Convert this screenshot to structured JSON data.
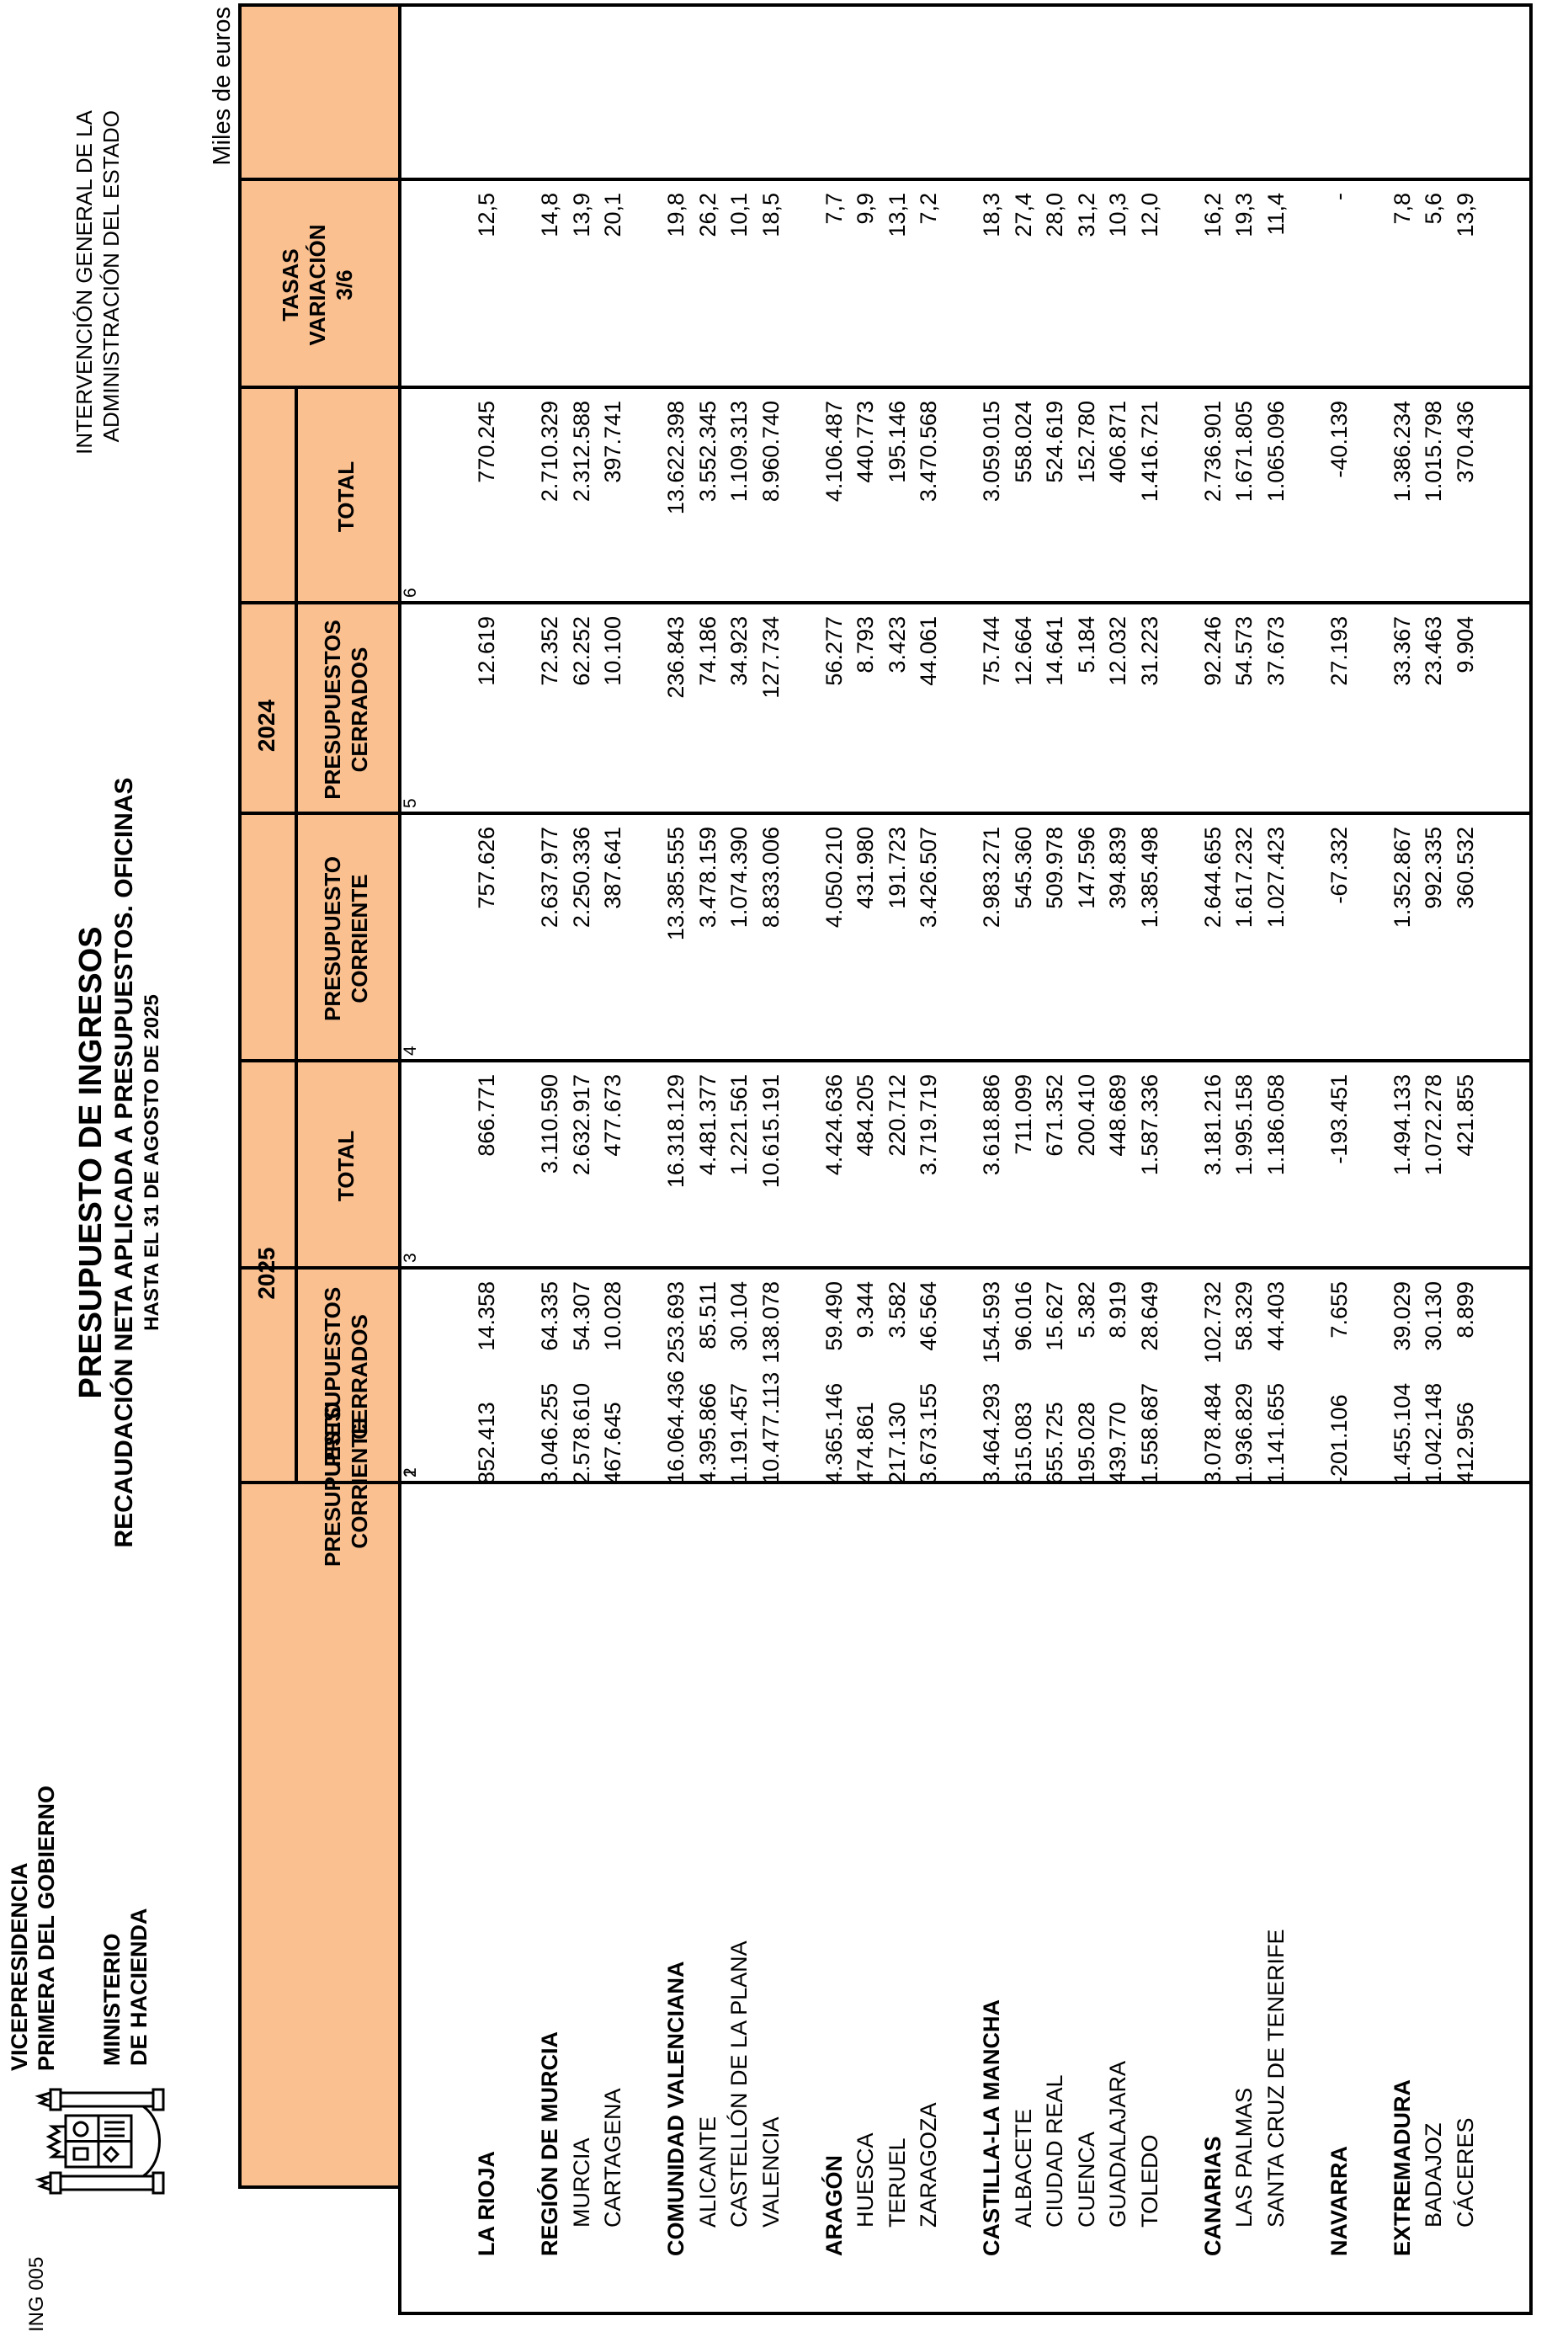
{
  "units_note": "Miles de euros",
  "letterhead": {
    "dept_line1": "VICEPRESIDENCIA",
    "dept_line2": "PRIMERA DEL GOBIERNO",
    "ministry_line1": "MINISTERIO",
    "ministry_line2": "DE HACIENDA",
    "form_code": "ING 005"
  },
  "agency": {
    "line1": "INTERVENCIÓN GENERAL DE LA",
    "line2": "ADMINISTRACIÓN DEL ESTADO"
  },
  "title": {
    "line1": "PRESUPUESTO DE INGRESOS",
    "line2": "RECAUDACIÓN NETA APLICADA A PRESUPUESTOS. OFICINAS",
    "line3": "HASTA EL 31 DE AGOSTO DE 2025"
  },
  "colors": {
    "header_fill": "#FAC090",
    "border": "#000000"
  },
  "table": {
    "year_groups": [
      {
        "label": "2025"
      },
      {
        "label": "2024"
      }
    ],
    "columns": [
      {
        "num": "1",
        "lines": [
          "PRESUPUESTO",
          "CORRIENTE"
        ]
      },
      {
        "num": "2",
        "lines": [
          "PRESUPUESTOS",
          "CERRADOS"
        ]
      },
      {
        "num": "3",
        "lines": [
          "TOTAL"
        ]
      },
      {
        "num": "4",
        "lines": [
          "PRESUPUESTO",
          "CORRIENTE"
        ]
      },
      {
        "num": "5",
        "lines": [
          "PRESUPUESTOS",
          "CERRADOS"
        ]
      },
      {
        "num": "6",
        "lines": [
          "TOTAL"
        ]
      },
      {
        "num": "",
        "lines": [
          "TASAS",
          "VARIACIÓN",
          "3/6"
        ]
      }
    ],
    "rows": [
      {
        "name": "LA RIOJA",
        "level": "group",
        "c1": "852.413",
        "c2": "14.358",
        "c3": "866.771",
        "c4": "757.626",
        "c5": "12.619",
        "c6": "770.245",
        "t": "12,5"
      },
      {
        "blank": true
      },
      {
        "name": "REGIÓN DE MURCIA",
        "level": "group",
        "c1": "3.046.255",
        "c2": "64.335",
        "c3": "3.110.590",
        "c4": "2.637.977",
        "c5": "72.352",
        "c6": "2.710.329",
        "t": "14,8"
      },
      {
        "name": "MURCIA",
        "level": "sub",
        "c1": "2.578.610",
        "c2": "54.307",
        "c3": "2.632.917",
        "c4": "2.250.336",
        "c5": "62.252",
        "c6": "2.312.588",
        "t": "13,9"
      },
      {
        "name": "CARTAGENA",
        "level": "sub",
        "c1": "467.645",
        "c2": "10.028",
        "c3": "477.673",
        "c4": "387.641",
        "c5": "10.100",
        "c6": "397.741",
        "t": "20,1"
      },
      {
        "blank": true
      },
      {
        "name": "COMUNIDAD VALENCIANA",
        "level": "group",
        "c1": "16.064.436",
        "c2": "253.693",
        "c3": "16.318.129",
        "c4": "13.385.555",
        "c5": "236.843",
        "c6": "13.622.398",
        "t": "19,8"
      },
      {
        "name": "ALICANTE",
        "level": "sub",
        "c1": "4.395.866",
        "c2": "85.511",
        "c3": "4.481.377",
        "c4": "3.478.159",
        "c5": "74.186",
        "c6": "3.552.345",
        "t": "26,2"
      },
      {
        "name": "CASTELLÓN DE LA PLANA",
        "level": "sub",
        "c1": "1.191.457",
        "c2": "30.104",
        "c3": "1.221.561",
        "c4": "1.074.390",
        "c5": "34.923",
        "c6": "1.109.313",
        "t": "10,1"
      },
      {
        "name": "VALENCIA",
        "level": "sub",
        "c1": "10.477.113",
        "c2": "138.078",
        "c3": "10.615.191",
        "c4": "8.833.006",
        "c5": "127.734",
        "c6": "8.960.740",
        "t": "18,5"
      },
      {
        "blank": true
      },
      {
        "name": "ARAGÓN",
        "level": "group",
        "c1": "4.365.146",
        "c2": "59.490",
        "c3": "4.424.636",
        "c4": "4.050.210",
        "c5": "56.277",
        "c6": "4.106.487",
        "t": "7,7"
      },
      {
        "name": "HUESCA",
        "level": "sub",
        "c1": "474.861",
        "c2": "9.344",
        "c3": "484.205",
        "c4": "431.980",
        "c5": "8.793",
        "c6": "440.773",
        "t": "9,9"
      },
      {
        "name": "TERUEL",
        "level": "sub",
        "c1": "217.130",
        "c2": "3.582",
        "c3": "220.712",
        "c4": "191.723",
        "c5": "3.423",
        "c6": "195.146",
        "t": "13,1"
      },
      {
        "name": "ZARAGOZA",
        "level": "sub",
        "c1": "3.673.155",
        "c2": "46.564",
        "c3": "3.719.719",
        "c4": "3.426.507",
        "c5": "44.061",
        "c6": "3.470.568",
        "t": "7,2"
      },
      {
        "blank": true
      },
      {
        "name": "CASTILLA-LA MANCHA",
        "level": "group",
        "c1": "3.464.293",
        "c2": "154.593",
        "c3": "3.618.886",
        "c4": "2.983.271",
        "c5": "75.744",
        "c6": "3.059.015",
        "t": "18,3"
      },
      {
        "name": "ALBACETE",
        "level": "sub",
        "c1": "615.083",
        "c2": "96.016",
        "c3": "711.099",
        "c4": "545.360",
        "c5": "12.664",
        "c6": "558.024",
        "t": "27,4"
      },
      {
        "name": "CIUDAD REAL",
        "level": "sub",
        "c1": "655.725",
        "c2": "15.627",
        "c3": "671.352",
        "c4": "509.978",
        "c5": "14.641",
        "c6": "524.619",
        "t": "28,0"
      },
      {
        "name": "CUENCA",
        "level": "sub",
        "c1": "195.028",
        "c2": "5.382",
        "c3": "200.410",
        "c4": "147.596",
        "c5": "5.184",
        "c6": "152.780",
        "t": "31,2"
      },
      {
        "name": "GUADALAJARA",
        "level": "sub",
        "c1": "439.770",
        "c2": "8.919",
        "c3": "448.689",
        "c4": "394.839",
        "c5": "12.032",
        "c6": "406.871",
        "t": "10,3"
      },
      {
        "name": "TOLEDO",
        "level": "sub",
        "c1": "1.558.687",
        "c2": "28.649",
        "c3": "1.587.336",
        "c4": "1.385.498",
        "c5": "31.223",
        "c6": "1.416.721",
        "t": "12,0"
      },
      {
        "blank": true
      },
      {
        "name": "CANARIAS",
        "level": "group",
        "c1": "3.078.484",
        "c2": "102.732",
        "c3": "3.181.216",
        "c4": "2.644.655",
        "c5": "92.246",
        "c6": "2.736.901",
        "t": "16,2"
      },
      {
        "name": "LAS PALMAS",
        "level": "sub",
        "c1": "1.936.829",
        "c2": "58.329",
        "c3": "1.995.158",
        "c4": "1.617.232",
        "c5": "54.573",
        "c6": "1.671.805",
        "t": "19,3"
      },
      {
        "name": "SANTA CRUZ DE TENERIFE",
        "level": "sub",
        "c1": "1.141.655",
        "c2": "44.403",
        "c3": "1.186.058",
        "c4": "1.027.423",
        "c5": "37.673",
        "c6": "1.065.096",
        "t": "11,4"
      },
      {
        "blank": true
      },
      {
        "name": "NAVARRA",
        "level": "group",
        "c1": "-201.106",
        "c2": "7.655",
        "c3": "-193.451",
        "c4": "-67.332",
        "c5": "27.193",
        "c6": "-40.139",
        "t": "-"
      },
      {
        "blank": true
      },
      {
        "name": "EXTREMADURA",
        "level": "group",
        "c1": "1.455.104",
        "c2": "39.029",
        "c3": "1.494.133",
        "c4": "1.352.867",
        "c5": "33.367",
        "c6": "1.386.234",
        "t": "7,8"
      },
      {
        "name": "BADAJOZ",
        "level": "sub",
        "c1": "1.042.148",
        "c2": "30.130",
        "c3": "1.072.278",
        "c4": "992.335",
        "c5": "23.463",
        "c6": "1.015.798",
        "t": "5,6"
      },
      {
        "name": "CÁCERES",
        "level": "sub",
        "c1": "412.956",
        "c2": "8.899",
        "c3": "421.855",
        "c4": "360.532",
        "c5": "9.904",
        "c6": "370.436",
        "t": "13,9"
      }
    ]
  }
}
